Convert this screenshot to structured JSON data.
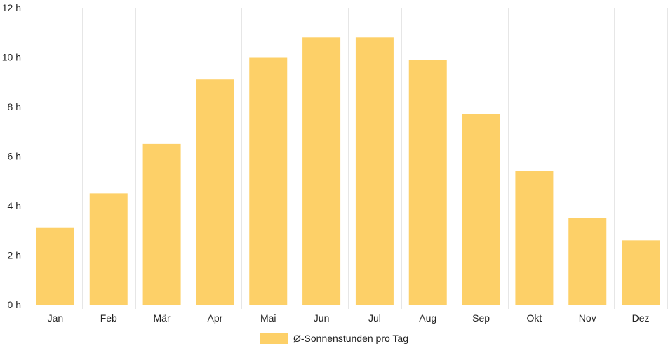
{
  "chart_data": {
    "type": "bar",
    "categories": [
      "Jan",
      "Feb",
      "Mär",
      "Apr",
      "Mai",
      "Jun",
      "Jul",
      "Aug",
      "Sep",
      "Okt",
      "Nov",
      "Dez"
    ],
    "series": [
      {
        "name": "Ø-Sonnenstunden pro Tag",
        "values": [
          3.1,
          4.5,
          6.5,
          9.1,
          10.0,
          10.8,
          10.8,
          9.9,
          7.7,
          5.4,
          3.5,
          2.6
        ],
        "color": "#fdd068"
      }
    ],
    "y_unit_suffix": " h",
    "ylim": [
      0,
      12
    ],
    "yticks": [
      0,
      2,
      4,
      6,
      8,
      10,
      12
    ],
    "grid": true,
    "legend_position": "bottom",
    "title": "",
    "xlabel": "",
    "ylabel": ""
  }
}
